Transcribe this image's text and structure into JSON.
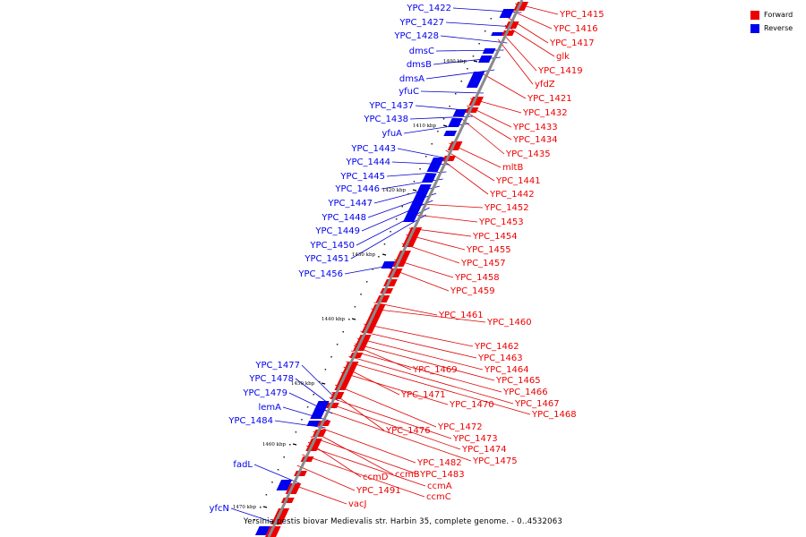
{
  "colors": {
    "forward": "#ee0000",
    "reverse": "#0000ee",
    "axis": "#888888",
    "connector_fwd": "#dd0000",
    "connector_rev": "#0000cc"
  },
  "legend": [
    {
      "label": "Forward",
      "color": "#ee0000"
    },
    {
      "label": "Reverse",
      "color": "#0000ee"
    }
  ],
  "caption": "Yersinia pestis biovar Medievalis str. Harbin 35, complete genome. - 0..4532063",
  "ticks": [
    "1400 kbp",
    "1410 kbp",
    "1420 kbp",
    "1430 kbp",
    "1440 kbp",
    "1450 kbp",
    "1460 kbp",
    "1470 kbp"
  ],
  "forward_labels": [
    "YPC_1415",
    "YPC_1416",
    "YPC_1417",
    "glk",
    "YPC_1419",
    "yfdZ",
    "YPC_1421",
    "YPC_1432",
    "YPC_1433",
    "YPC_1434",
    "YPC_1435",
    "mltB",
    "YPC_1441",
    "YPC_1442",
    "YPC_1452",
    "YPC_1453",
    "YPC_1454",
    "YPC_1455",
    "YPC_1457",
    "YPC_1458",
    "YPC_1459",
    "YPC_1461",
    "YPC_1460",
    "YPC_1462",
    "YPC_1463",
    "YPC_1464",
    "YPC_1469",
    "YPC_1465",
    "YPC_1466",
    "YPC_1471",
    "YPC_1467",
    "YPC_1470",
    "YPC_1468",
    "YPC_1472",
    "YPC_1476",
    "YPC_1473",
    "YPC_1474",
    "YPC_1475",
    "YPC_1482",
    "ccmB",
    "YPC_1483",
    "ccmD",
    "ccmA",
    "YPC_1491",
    "ccmC",
    "vacJ"
  ],
  "reverse_labels": [
    "YPC_1422",
    "YPC_1427",
    "YPC_1428",
    "dmsC",
    "dmsB",
    "dmsA",
    "yfuC",
    "YPC_1437",
    "YPC_1438",
    "yfuA",
    "YPC_1443",
    "YPC_1444",
    "YPC_1445",
    "YPC_1446",
    "YPC_1447",
    "YPC_1448",
    "YPC_1449",
    "YPC_1450",
    "YPC_1451",
    "YPC_1456",
    "YPC_1477",
    "YPC_1478",
    "YPC_1479",
    "lemA",
    "YPC_1484",
    "fadL",
    "yfcN"
  ]
}
